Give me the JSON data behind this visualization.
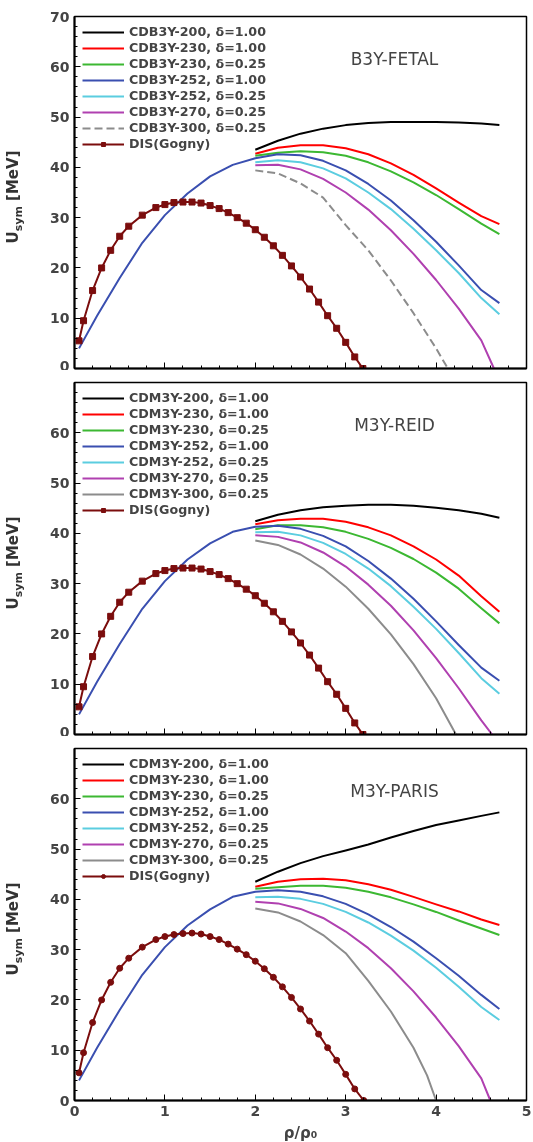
{
  "chart_data": [
    {
      "type": "line",
      "annotations": [
        "B3Y-FETAL"
      ],
      "ylabel": "U$_{sym}$ [MeV]",
      "xlim": [
        0,
        5
      ],
      "ylim": [
        0,
        70
      ],
      "xticks": [
        0,
        1,
        2,
        3,
        4,
        5
      ],
      "yticks": [
        0,
        10,
        20,
        30,
        40,
        50,
        60,
        70
      ],
      "tick_labels": "y",
      "legend": "top left",
      "grid": false,
      "line_style": "solid",
      "x": [
        2,
        2.25,
        2.5,
        2.75,
        3,
        3.25,
        3.5,
        3.75,
        4,
        4.25,
        4.5,
        4.7
      ],
      "series": [
        {
          "name": "CDB3Y-200, δ=1.00",
          "color": "#000000",
          "values": [
            43.5,
            45.3,
            46.7,
            47.7,
            48.4,
            48.8,
            49,
            49,
            49,
            48.9,
            48.7,
            48.4
          ]
        },
        {
          "name": "CDB3Y-230, δ=1.00",
          "color": "#ff0000",
          "values": [
            42.7,
            43.9,
            44.4,
            44.4,
            43.8,
            42.6,
            40.8,
            38.5,
            35.8,
            33,
            30.3,
            28.7
          ]
        },
        {
          "name": "CDB3Y-230, δ=0.25",
          "color": "#3cb832",
          "values": [
            42.3,
            42.9,
            43.2,
            43,
            42.3,
            41,
            39.2,
            37,
            34.5,
            31.7,
            28.8,
            26.7
          ]
        },
        {
          "name": "CDB3Y-252, δ=1.00",
          "color": "#3a4fb0",
          "x": [
            0.05,
            0.25,
            0.5,
            0.75,
            1,
            1.25,
            1.5,
            1.75,
            2,
            2.25,
            2.5,
            2.75,
            3,
            3.25,
            3.5,
            3.75,
            4,
            4.25,
            4.5,
            4.7
          ],
          "values": [
            4,
            10.5,
            18,
            25,
            30.5,
            34.8,
            38.2,
            40.5,
            41.8,
            42.6,
            42.4,
            41.3,
            39.4,
            36.7,
            33.4,
            29.5,
            25.2,
            20.5,
            15.6,
            13
          ]
        },
        {
          "name": "CDB3Y-252, δ=0.25",
          "color": "#5bcde0",
          "values": [
            41,
            41.4,
            41,
            39.8,
            37.8,
            35,
            31.7,
            27.8,
            23.5,
            19,
            14,
            10.8
          ]
        },
        {
          "name": "CDB3Y-270, δ=0.25",
          "color": "#b040b0",
          "x": [
            2,
            2.25,
            2.5,
            2.75,
            3,
            3.25,
            3.5,
            3.75,
            4,
            4.25,
            4.5,
            4.64
          ],
          "values": [
            40.4,
            40.5,
            39.6,
            37.7,
            35,
            31.6,
            27.5,
            22.8,
            17.6,
            11.9,
            5.6,
            0
          ]
        },
        {
          "name": "CDB3Y-300, δ=0.25",
          "color": "#8c8c8c",
          "line_style": "dashed",
          "x": [
            2,
            2.25,
            2.5,
            2.75,
            3,
            3.25,
            3.5,
            3.75,
            4,
            4.13
          ],
          "values": [
            39.4,
            38.8,
            36.8,
            34,
            28.5,
            23.5,
            17.5,
            11,
            4,
            0
          ]
        },
        {
          "name": "DIS(Gogny)",
          "color": "#7b0d0d",
          "marker": "square",
          "x": [
            0.05,
            0.1,
            0.2,
            0.3,
            0.4,
            0.5,
            0.6,
            0.75,
            0.9,
            1,
            1.1,
            1.2,
            1.3,
            1.4,
            1.5,
            1.6,
            1.7,
            1.8,
            1.9,
            2,
            2.1,
            2.2,
            2.3,
            2.4,
            2.5,
            2.6,
            2.7,
            2.8,
            2.9,
            3,
            3.1,
            3.19
          ],
          "values": [
            5.5,
            9.5,
            15.5,
            20,
            23.5,
            26.3,
            28.3,
            30.5,
            32,
            32.6,
            33,
            33.1,
            33.1,
            32.9,
            32.4,
            31.8,
            31,
            30,
            28.9,
            27.6,
            26.1,
            24.4,
            22.5,
            20.4,
            18.2,
            15.8,
            13.2,
            10.5,
            8,
            5.2,
            2.3,
            0
          ]
        }
      ]
    },
    {
      "type": "line",
      "annotations": [
        "M3Y-REID"
      ],
      "ylabel": "U$_{sym}$ [MeV]",
      "xlim": [
        0,
        5
      ],
      "ylim": [
        0,
        70
      ],
      "xticks": [
        0,
        1,
        2,
        3,
        4,
        5
      ],
      "yticks": [
        0,
        10,
        20,
        30,
        40,
        50,
        60
      ],
      "tick_labels": "y",
      "legend": "top left",
      "grid": false,
      "line_style": "solid",
      "x": [
        2,
        2.25,
        2.5,
        2.75,
        3,
        3.25,
        3.5,
        3.75,
        4,
        4.25,
        4.5,
        4.7
      ],
      "series": [
        {
          "name": "CDM3Y-200, δ=1.00",
          "color": "#000000",
          "values": [
            42.4,
            43.7,
            44.6,
            45.2,
            45.5,
            45.7,
            45.7,
            45.5,
            45.1,
            44.6,
            43.9,
            43.1
          ]
        },
        {
          "name": "CDM3Y-230, δ=1.00",
          "color": "#ff0000",
          "values": [
            41.8,
            42.6,
            42.9,
            42.9,
            42.3,
            41.2,
            39.6,
            37.4,
            34.8,
            31.6,
            27.5,
            24.4
          ]
        },
        {
          "name": "CDM3Y-230, δ=0.25",
          "color": "#3cb832",
          "values": [
            40.8,
            41.6,
            41.6,
            41.2,
            40.3,
            38.9,
            37.1,
            34.9,
            32.2,
            29,
            25.1,
            22.1
          ]
        },
        {
          "name": "CDM3Y-252, δ=1.00",
          "color": "#3a4fb0",
          "x": [
            0.05,
            0.25,
            0.5,
            0.75,
            1,
            1.25,
            1.5,
            1.75,
            2,
            2.25,
            2.5,
            2.75,
            3,
            3.25,
            3.5,
            3.75,
            4,
            4.25,
            4.5,
            4.7
          ],
          "values": [
            4,
            10.5,
            18,
            25,
            30.5,
            34.8,
            38,
            40.3,
            41.3,
            41.5,
            40.9,
            39.5,
            37.4,
            34.5,
            31,
            27,
            22.5,
            17.8,
            13.3,
            10.7
          ]
        },
        {
          "name": "CDM3Y-252, δ=0.25",
          "color": "#5bcde0",
          "values": [
            40.2,
            40.3,
            39.6,
            38.1,
            35.9,
            33,
            29.5,
            25.4,
            21,
            16.2,
            11.2,
            8.1
          ]
        },
        {
          "name": "CDM3Y-270, δ=0.25",
          "color": "#b040b0",
          "x": [
            2,
            2.25,
            2.5,
            2.75,
            3,
            3.25,
            3.5,
            3.75,
            4,
            4.25,
            4.5,
            4.62
          ],
          "values": [
            39.6,
            39.3,
            38.2,
            36.2,
            33.4,
            29.8,
            25.6,
            20.7,
            15.2,
            9.2,
            2.8,
            0
          ]
        },
        {
          "name": "CDM3Y-300, δ=0.25",
          "color": "#8c8c8c",
          "x": [
            2,
            2.25,
            2.5,
            2.75,
            3,
            3.25,
            3.5,
            3.75,
            4,
            4.22
          ],
          "values": [
            38.6,
            37.7,
            35.8,
            33,
            29.4,
            25,
            19.9,
            14,
            7.2,
            0
          ]
        },
        {
          "name": "DIS(Gogny)",
          "color": "#7b0d0d",
          "marker": "square",
          "x": [
            0.05,
            0.1,
            0.2,
            0.3,
            0.4,
            0.5,
            0.6,
            0.75,
            0.9,
            1,
            1.1,
            1.2,
            1.3,
            1.4,
            1.5,
            1.6,
            1.7,
            1.8,
            1.9,
            2,
            2.1,
            2.2,
            2.3,
            2.4,
            2.5,
            2.6,
            2.7,
            2.8,
            2.9,
            3,
            3.1,
            3.19
          ],
          "values": [
            5.5,
            9.5,
            15.5,
            20,
            23.5,
            26.3,
            28.3,
            30.5,
            32,
            32.6,
            33,
            33.1,
            33.1,
            32.9,
            32.4,
            31.8,
            31,
            30,
            28.9,
            27.6,
            26.1,
            24.4,
            22.5,
            20.4,
            18.2,
            15.8,
            13.2,
            10.5,
            8,
            5.2,
            2.3,
            0
          ]
        }
      ]
    },
    {
      "type": "line",
      "annotations": [
        "M3Y-PARIS"
      ],
      "xlabel": "ρ/ρ₀",
      "ylabel": "U$_{sym}$ [MeV]",
      "xlim": [
        0,
        5
      ],
      "ylim": [
        0,
        70
      ],
      "xticks": [
        0,
        1,
        2,
        3,
        4,
        5
      ],
      "yticks": [
        0,
        10,
        20,
        30,
        40,
        50,
        60
      ],
      "legend": "top left",
      "grid": false,
      "line_style": "solid",
      "x": [
        2,
        2.25,
        2.5,
        2.75,
        3,
        3.25,
        3.5,
        3.75,
        4,
        4.25,
        4.5,
        4.7
      ],
      "series": [
        {
          "name": "CDM3Y-200, δ=1.00",
          "color": "#000000",
          "values": [
            43.5,
            45.5,
            47.2,
            48.6,
            49.7,
            50.9,
            52.3,
            53.6,
            54.8,
            55.7,
            56.6,
            57.3
          ]
        },
        {
          "name": "CDM3Y-230, δ=1.00",
          "color": "#ff0000",
          "values": [
            42.5,
            43.5,
            44,
            44.1,
            43.8,
            43,
            41.9,
            40.5,
            39,
            37.6,
            36,
            34.9
          ]
        },
        {
          "name": "CDM3Y-230, δ=0.25",
          "color": "#3cb832",
          "values": [
            42.1,
            42.4,
            42.7,
            42.7,
            42.3,
            41.5,
            40.4,
            39,
            37.5,
            35.8,
            34.2,
            32.9
          ]
        },
        {
          "name": "CDM3Y-252, δ=1.00",
          "color": "#3a4fb0",
          "x": [
            0.05,
            0.25,
            0.5,
            0.75,
            1,
            1.25,
            1.5,
            1.75,
            2,
            2.25,
            2.5,
            2.75,
            3,
            3.25,
            3.5,
            3.75,
            4,
            4.25,
            4.5,
            4.7
          ],
          "values": [
            4,
            10.5,
            18,
            25,
            30.5,
            34.8,
            38,
            40.5,
            41.5,
            41.8,
            41.5,
            40.6,
            39.1,
            37,
            34.5,
            31.6,
            28.3,
            24.8,
            21,
            18.2
          ]
        },
        {
          "name": "CDM3Y-252, δ=0.25",
          "color": "#5bcde0",
          "values": [
            40.4,
            40.5,
            40.1,
            39.1,
            37.5,
            35.4,
            32.8,
            29.8,
            26.4,
            22.6,
            18.6,
            16
          ]
        },
        {
          "name": "CDM3Y-270, δ=0.25",
          "color": "#b040b0",
          "x": [
            2,
            2.25,
            2.5,
            2.75,
            3,
            3.25,
            3.5,
            3.75,
            4,
            4.25,
            4.5,
            4.6
          ],
          "values": [
            39.5,
            39.2,
            38.1,
            36.3,
            33.6,
            30.3,
            26.3,
            21.7,
            16.5,
            10.8,
            4.4,
            0
          ]
        },
        {
          "name": "CDM3Y-300, δ=0.25",
          "color": "#8c8c8c",
          "x": [
            2,
            2.25,
            2.5,
            2.75,
            3,
            3.25,
            3.5,
            3.75,
            3.9,
            4
          ],
          "values": [
            38.2,
            37.4,
            35.6,
            32.9,
            29.3,
            23.8,
            17.7,
            10.5,
            5,
            0
          ]
        },
        {
          "name": "DIS(Gogny)",
          "color": "#7b0d0d",
          "marker": "circle",
          "x": [
            0.05,
            0.1,
            0.2,
            0.3,
            0.4,
            0.5,
            0.6,
            0.75,
            0.9,
            1,
            1.1,
            1.2,
            1.3,
            1.4,
            1.5,
            1.6,
            1.7,
            1.8,
            1.9,
            2,
            2.1,
            2.2,
            2.3,
            2.4,
            2.5,
            2.6,
            2.7,
            2.8,
            2.9,
            3,
            3.1,
            3.2
          ],
          "values": [
            5.5,
            9.5,
            15.5,
            20,
            23.5,
            26.3,
            28.3,
            30.5,
            32,
            32.6,
            33,
            33.2,
            33.3,
            33.1,
            32.6,
            32,
            31.1,
            30.1,
            29,
            27.7,
            26.2,
            24.5,
            22.6,
            20.5,
            18.2,
            15.8,
            13.2,
            10.5,
            8,
            5.2,
            2.3,
            0
          ]
        }
      ]
    }
  ]
}
